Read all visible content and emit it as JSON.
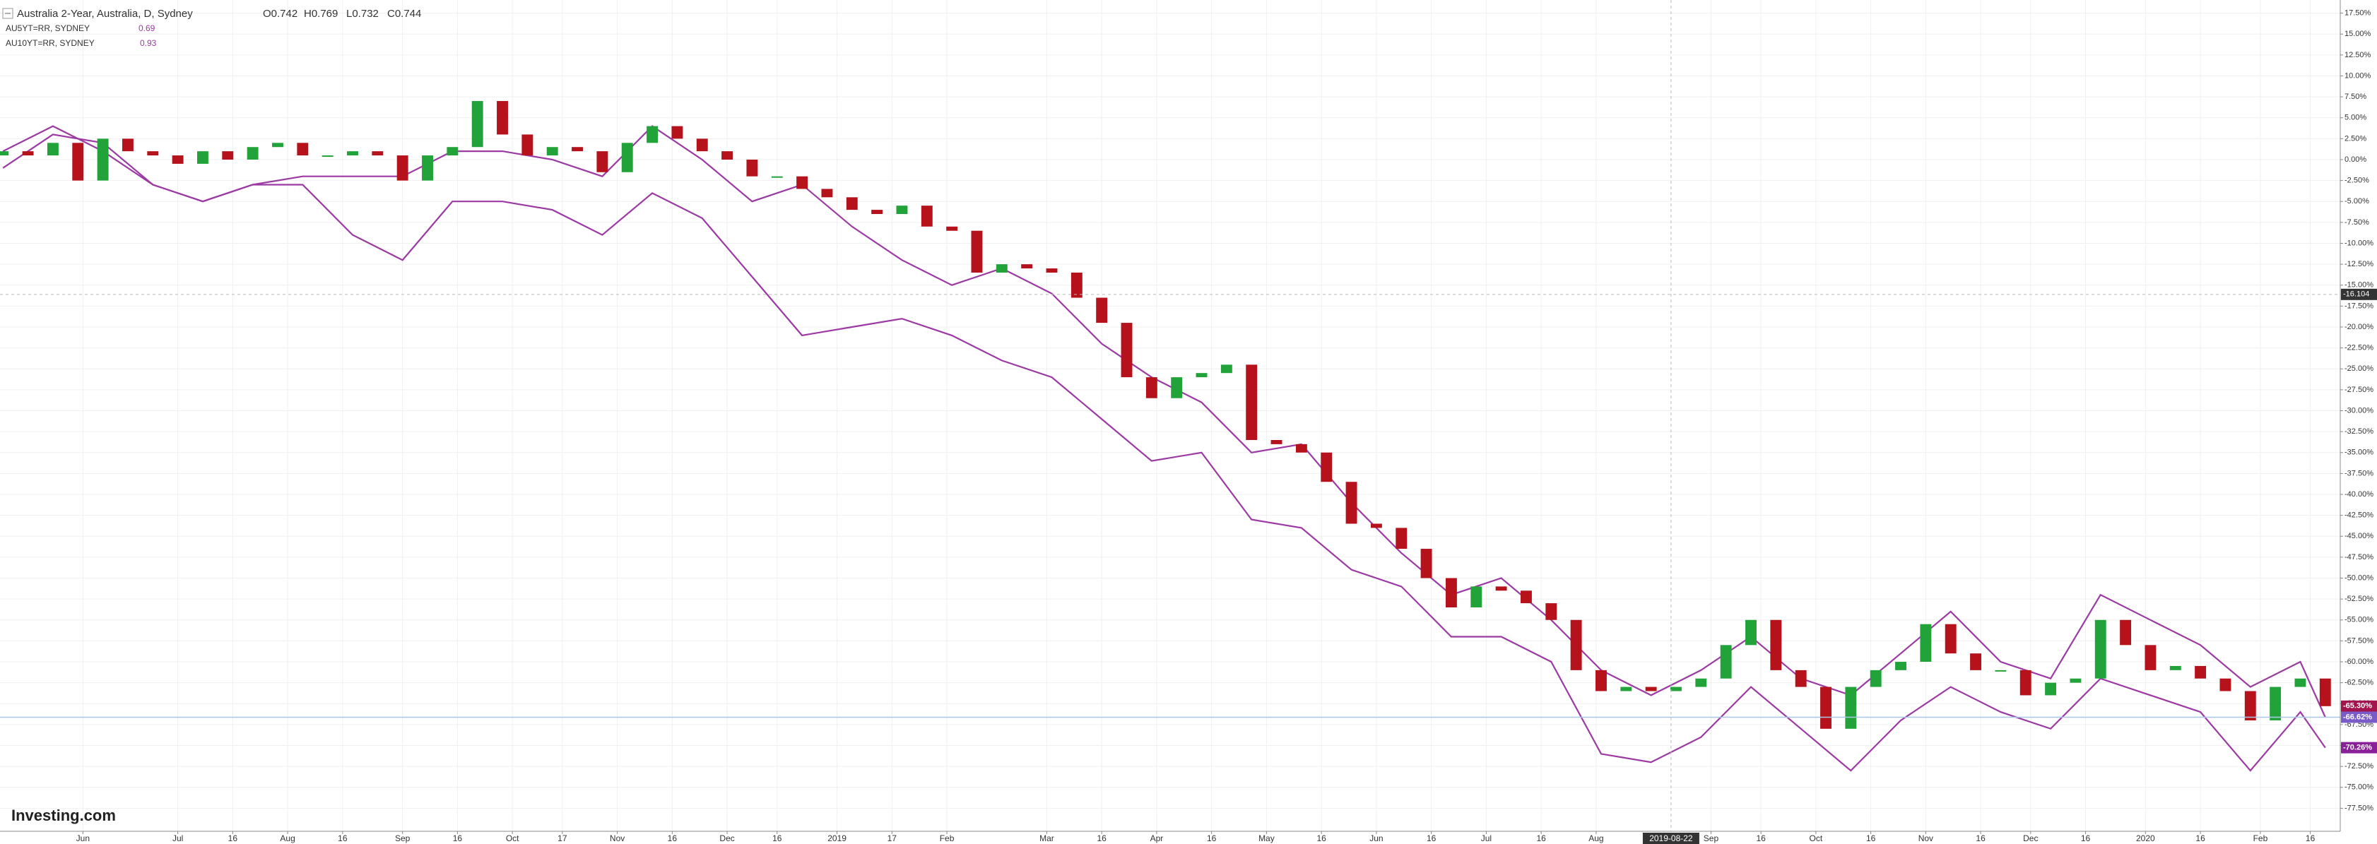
{
  "chart_data": {
    "type": "candlestick",
    "xlim": [
      -0.6,
      468
    ],
    "ylim": [
      -80.25,
      19.07
    ],
    "grid": true,
    "xticks": [
      {
        "value": 16,
        "label": "Jun"
      },
      {
        "value": 35,
        "label": "Jul"
      },
      {
        "value": 46,
        "label": "16"
      },
      {
        "value": 57,
        "label": "Aug"
      },
      {
        "value": 68,
        "label": "16"
      },
      {
        "value": 80,
        "label": "Sep"
      },
      {
        "value": 91,
        "label": "16"
      },
      {
        "value": 102,
        "label": "Oct"
      },
      {
        "value": 112,
        "label": "17"
      },
      {
        "value": 123,
        "label": "Nov"
      },
      {
        "value": 134,
        "label": "16"
      },
      {
        "value": 145,
        "label": "Dec"
      },
      {
        "value": 155,
        "label": "16"
      },
      {
        "value": 167,
        "label": "2019"
      },
      {
        "value": 178,
        "label": "17"
      },
      {
        "value": 189,
        "label": "Feb"
      },
      {
        "value": 209,
        "label": "Mar"
      },
      {
        "value": 220,
        "label": "16"
      },
      {
        "value": 231,
        "label": "Apr"
      },
      {
        "value": 242,
        "label": "16"
      },
      {
        "value": 253,
        "label": "May"
      },
      {
        "value": 264,
        "label": "16"
      },
      {
        "value": 275,
        "label": "Jun"
      },
      {
        "value": 286,
        "label": "16"
      },
      {
        "value": 297,
        "label": "Jul"
      },
      {
        "value": 308,
        "label": "16"
      },
      {
        "value": 319,
        "label": "Aug"
      },
      {
        "value": 342,
        "label": "Sep"
      },
      {
        "value": 352,
        "label": "16"
      },
      {
        "value": 363,
        "label": "Oct"
      },
      {
        "value": 374,
        "label": "16"
      },
      {
        "value": 385,
        "label": "Nov"
      },
      {
        "value": 396,
        "label": "16"
      },
      {
        "value": 406,
        "label": "Dec"
      },
      {
        "value": 417,
        "label": "16"
      },
      {
        "value": 429,
        "label": "2020"
      },
      {
        "value": 440,
        "label": "16"
      },
      {
        "value": 452,
        "label": "Feb"
      },
      {
        "value": 462,
        "label": "16"
      }
    ],
    "yticks": [
      {
        "value": 17.5,
        "label": "17.50%"
      },
      {
        "value": 15,
        "label": "15.00%"
      },
      {
        "value": 12.5,
        "label": "12.50%"
      },
      {
        "value": 10,
        "label": "10.00%"
      },
      {
        "value": 7.5,
        "label": "7.50%"
      },
      {
        "value": 5,
        "label": "5.00%"
      },
      {
        "value": 2.5,
        "label": "2.50%"
      },
      {
        "value": 0,
        "label": "0.00%"
      },
      {
        "value": -2.5,
        "label": "-2.50%"
      },
      {
        "value": -5,
        "label": "-5.00%"
      },
      {
        "value": -7.5,
        "label": "-7.50%"
      },
      {
        "value": -10,
        "label": "-10.00%"
      },
      {
        "value": -12.5,
        "label": "-12.50%"
      },
      {
        "value": -15,
        "label": "-15.00%"
      },
      {
        "value": -17.5,
        "label": "-17.50%"
      },
      {
        "value": -20,
        "label": "-20.00%"
      },
      {
        "value": -22.5,
        "label": "-22.50%"
      },
      {
        "value": -25,
        "label": "-25.00%"
      },
      {
        "value": -27.5,
        "label": "-27.50%"
      },
      {
        "value": -30,
        "label": "-30.00%"
      },
      {
        "value": -32.5,
        "label": "-32.50%"
      },
      {
        "value": -35,
        "label": "-35.00%"
      },
      {
        "value": -37.5,
        "label": "-37.50%"
      },
      {
        "value": -40,
        "label": "-40.00%"
      },
      {
        "value": -42.5,
        "label": "-42.50%"
      },
      {
        "value": -45,
        "label": "-45.00%"
      },
      {
        "value": -47.5,
        "label": "-47.50%"
      },
      {
        "value": -50,
        "label": "-50.00%"
      },
      {
        "value": -52.5,
        "label": "-52.50%"
      },
      {
        "value": -55,
        "label": "-55.00%"
      },
      {
        "value": -57.5,
        "label": "-57.50%"
      },
      {
        "value": -60,
        "label": "-60.00%"
      },
      {
        "value": -62.5,
        "label": "-62.50%"
      },
      {
        "value": -65,
        "label": "-65.00%"
      },
      {
        "value": -67.5,
        "label": "-67.50%"
      },
      {
        "value": -70,
        "label": "-70.00%"
      },
      {
        "value": -72.5,
        "label": "-72.50%"
      },
      {
        "value": -75,
        "label": "-75.00%"
      },
      {
        "value": -77.5,
        "label": "-77.50%"
      }
    ],
    "crosshair": {
      "x": 334,
      "x_label": "2019-08-22",
      "y": -16.104
    },
    "watermark": "Investing.com",
    "series": [
      {
        "name": "Australia 2-Year, Australia, D, Sydney",
        "ohlc": [
          "O0.742",
          "H0.769",
          "L0.732",
          "C0.744"
        ],
        "up_color": "#22a33a",
        "down_color": "#b5121b",
        "label_color": "#a3134e",
        "last_label": "-65.30%",
        "x": [
          0,
          5,
          10,
          15,
          20,
          25,
          30,
          35,
          40,
          45,
          50,
          55,
          60,
          65,
          70,
          75,
          80,
          85,
          90,
          95,
          100,
          105,
          110,
          115,
          120,
          125,
          130,
          135,
          140,
          145,
          150,
          155,
          160,
          165,
          170,
          175,
          180,
          185,
          190,
          195,
          200,
          205,
          210,
          215,
          220,
          225,
          230,
          235,
          240,
          245,
          250,
          255,
          260,
          265,
          270,
          275,
          280,
          285,
          290,
          295,
          300,
          305,
          310,
          315,
          320,
          325,
          330,
          335,
          340,
          345,
          350,
          355,
          360,
          365,
          370,
          375,
          380,
          385,
          390,
          395,
          400,
          405,
          410,
          415,
          420,
          425,
          430,
          435,
          440,
          445,
          450,
          455,
          460,
          465
        ],
        "open": [
          0.5,
          1.0,
          0.5,
          2.0,
          -2.5,
          2.5,
          1.0,
          0.5,
          -0.5,
          1.0,
          0.0,
          1.5,
          2.0,
          0.5,
          0.5,
          1.0,
          0.5,
          -2.5,
          0.5,
          1.5,
          7.0,
          3.0,
          0.5,
          1.5,
          1.0,
          -1.5,
          2.0,
          4.0,
          2.5,
          1.0,
          0.0,
          -2.0,
          -2.0,
          -3.5,
          -4.5,
          -6.0,
          -6.5,
          -5.5,
          -8.0,
          -8.5,
          -13.5,
          -12.5,
          -13.0,
          -13.5,
          -16.5,
          -19.5,
          -26.0,
          -28.5,
          -26.0,
          -25.5,
          -24.5,
          -33.5,
          -34.0,
          -35.0,
          -38.5,
          -43.5,
          -44.0,
          -46.5,
          -50.0,
          -53.5,
          -51.0,
          -51.5,
          -53.0,
          -55.0,
          -61.0,
          -63.5,
          -63.0,
          -63.5,
          -63.0,
          -62.0,
          -58.0,
          -55.0,
          -61.0,
          -63.0,
          -68.0,
          -63.0,
          -61.0,
          -60.0,
          -55.5,
          -59.0,
          -61.0,
          -61.0,
          -64.0,
          -62.5,
          -62.0,
          -55.0,
          -58.0,
          -61.0,
          -60.5,
          -62.0,
          -63.5,
          -67.0,
          -63.0,
          -62.0
        ],
        "close": [
          1.0,
          0.5,
          2.0,
          -2.5,
          2.5,
          1.0,
          0.5,
          -0.5,
          1.0,
          0.0,
          1.5,
          2.0,
          0.5,
          0.5,
          1.0,
          0.5,
          -2.5,
          0.5,
          1.5,
          7.0,
          3.0,
          0.5,
          1.5,
          1.0,
          -1.5,
          2.0,
          4.0,
          2.5,
          1.0,
          0.0,
          -2.0,
          -2.0,
          -3.5,
          -4.5,
          -6.0,
          -6.5,
          -5.5,
          -8.0,
          -8.5,
          -13.5,
          -12.5,
          -13.0,
          -13.5,
          -16.5,
          -19.5,
          -26.0,
          -28.5,
          -26.0,
          -25.5,
          -24.5,
          -33.5,
          -34.0,
          -35.0,
          -38.5,
          -43.5,
          -44.0,
          -46.5,
          -50.0,
          -53.5,
          -51.0,
          -51.5,
          -53.0,
          -55.0,
          -61.0,
          -63.5,
          -63.0,
          -63.5,
          -63.0,
          -62.0,
          -58.0,
          -55.0,
          -61.0,
          -63.0,
          -68.0,
          -63.0,
          -61.0,
          -60.0,
          -55.5,
          -59.0,
          -61.0,
          -61.0,
          -64.0,
          -62.5,
          -62.0,
          -55.0,
          -58.0,
          -61.0,
          -60.5,
          -62.0,
          -63.5,
          -67.0,
          -63.0,
          -62.0,
          -65.3
        ]
      },
      {
        "name": "AU5YT=RR, SYDNEY",
        "legend_value": 0.69,
        "color": "#9c3aa4",
        "label_color": "#7a5cc8",
        "price_line_color": "#a9c6e6",
        "last_label": "-66.62%",
        "x": [
          0,
          10,
          20,
          30,
          40,
          50,
          60,
          70,
          80,
          90,
          100,
          110,
          120,
          130,
          140,
          150,
          160,
          170,
          180,
          190,
          200,
          210,
          220,
          230,
          240,
          250,
          260,
          270,
          280,
          290,
          300,
          310,
          320,
          330,
          340,
          350,
          360,
          370,
          380,
          390,
          400,
          410,
          420,
          430,
          440,
          450,
          460,
          465
        ],
        "values": [
          -1,
          3,
          2,
          -3,
          -5,
          -3,
          -2,
          -2,
          -2,
          1,
          1,
          0,
          -2,
          4,
          0,
          -5,
          -3,
          -8,
          -12,
          -15,
          -13,
          -16,
          -22,
          -26,
          -29,
          -35,
          -34,
          -41,
          -47,
          -52,
          -50,
          -55,
          -61,
          -64,
          -61,
          -57,
          -62,
          -64,
          -59,
          -54,
          -60,
          -62,
          -52,
          -55,
          -58,
          -63,
          -60,
          -66.62
        ]
      },
      {
        "name": "AU10YT=RR, SYDNEY",
        "legend_value": 0.93,
        "color": "#9c3aa4",
        "label_color": "#8a1f9a",
        "last_label": "-70.26%",
        "x": [
          0,
          10,
          20,
          30,
          40,
          50,
          60,
          70,
          80,
          90,
          100,
          110,
          120,
          130,
          140,
          150,
          160,
          170,
          180,
          190,
          200,
          210,
          220,
          230,
          240,
          250,
          260,
          270,
          280,
          290,
          300,
          310,
          320,
          330,
          340,
          350,
          360,
          370,
          380,
          390,
          400,
          410,
          420,
          430,
          440,
          450,
          460,
          465
        ],
        "values": [
          1,
          4,
          1,
          -3,
          -5,
          -3,
          -3,
          -9,
          -12,
          -5,
          -5,
          -6,
          -9,
          -4,
          -7,
          -14,
          -21,
          -20,
          -19,
          -21,
          -24,
          -26,
          -31,
          -36,
          -35,
          -43,
          -44,
          -49,
          -51,
          -57,
          -57,
          -60,
          -71,
          -72,
          -69,
          -63,
          -68,
          -73,
          -67,
          -63,
          -66,
          -68,
          -62,
          -64,
          -66,
          -73,
          -66,
          -70.26
        ]
      }
    ]
  }
}
